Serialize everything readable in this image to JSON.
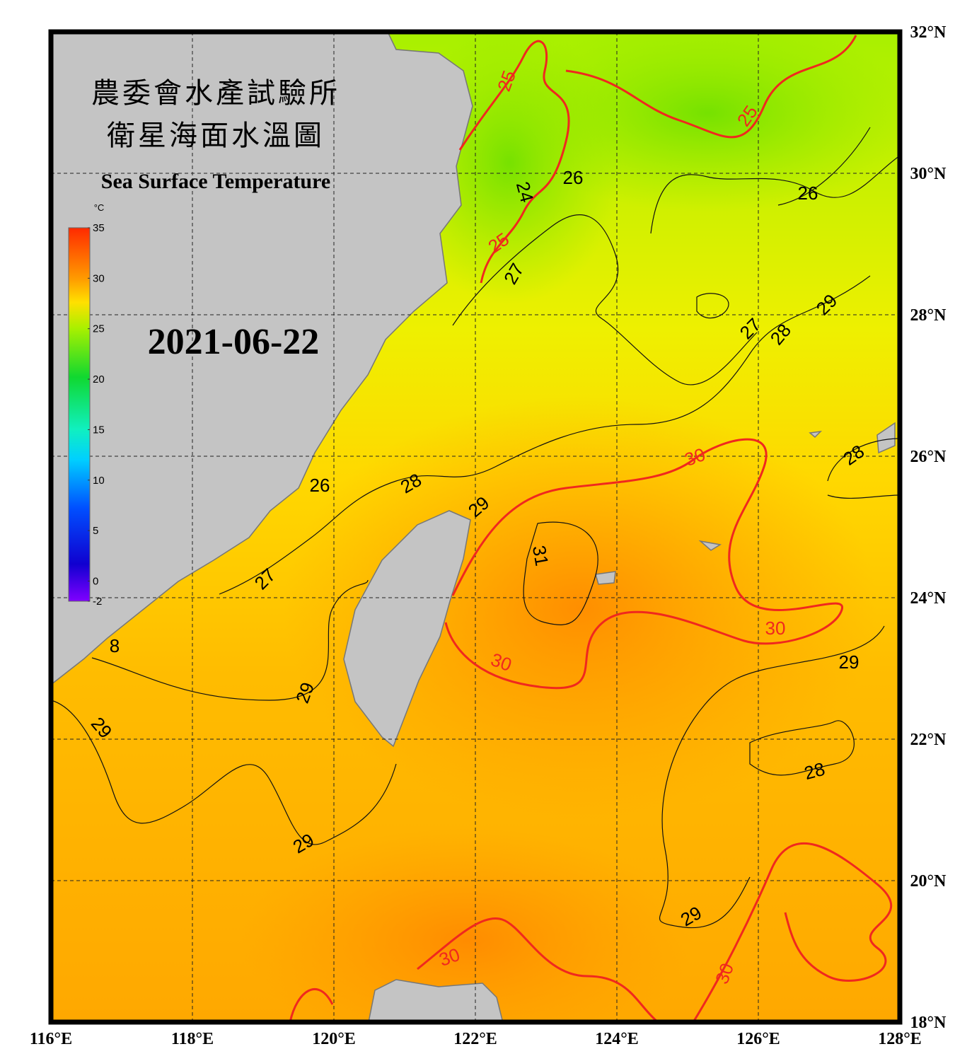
{
  "header": {
    "title_zh_1": "農委會水產試驗所",
    "title_zh_2": "衛星海面水溫圖",
    "title_en": "Sea Surface Temperature",
    "date": "2021-06-22"
  },
  "colorbar": {
    "unit": "°C",
    "ticks": [
      35,
      30,
      25,
      20,
      15,
      10,
      5,
      0,
      -2
    ]
  },
  "axes": {
    "lat_labels": [
      {
        "value": 32,
        "label": "32°N"
      },
      {
        "value": 30,
        "label": "30°N"
      },
      {
        "value": 28,
        "label": "28°N"
      },
      {
        "value": 26,
        "label": "26°N"
      },
      {
        "value": 24,
        "label": "24°N"
      },
      {
        "value": 22,
        "label": "22°N"
      },
      {
        "value": 20,
        "label": "20°N"
      },
      {
        "value": 18,
        "label": "18°N"
      }
    ],
    "lon_labels": [
      {
        "value": 116,
        "label": "116°E"
      },
      {
        "value": 118,
        "label": "118°E"
      },
      {
        "value": 120,
        "label": "120°E"
      },
      {
        "value": 122,
        "label": "122°E"
      },
      {
        "value": 124,
        "label": "124°E"
      },
      {
        "value": 126,
        "label": "126°E"
      },
      {
        "value": 128,
        "label": "128°E"
      }
    ]
  },
  "contour_labels": [
    "25",
    "25",
    "24",
    "26",
    "25",
    "26",
    "27",
    "29",
    "27",
    "28",
    "28",
    "30",
    "26",
    "28",
    "29",
    "31",
    "27",
    "8",
    "30",
    "30",
    "29",
    "29",
    "29",
    "28",
    "29",
    "29",
    "30",
    "30"
  ]
}
